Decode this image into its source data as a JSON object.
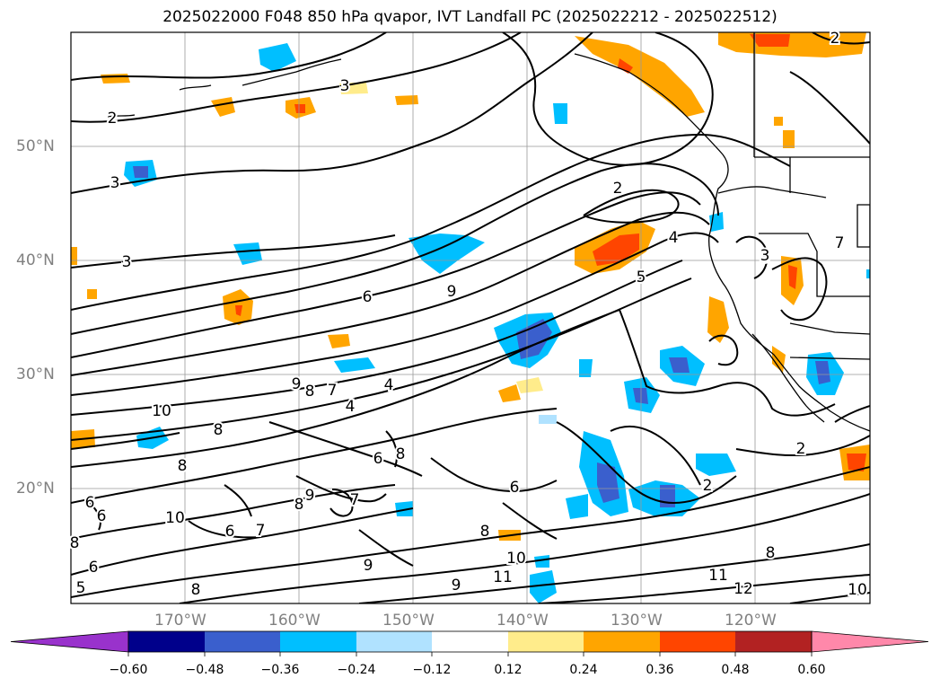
{
  "title": "2025022000 F048 850 hPa qvapor, IVT Landfall PC (2025022212 - 2025022512)",
  "map": {
    "lat_labels": [
      "50°N",
      "40°N",
      "30°N",
      "20°N"
    ],
    "lon_labels": [
      "170°W",
      "160°W",
      "150°W",
      "140°W",
      "130°W",
      "120°W"
    ],
    "colors": {
      "contour": "#000000",
      "grid": "#999999",
      "coast": "#000000"
    },
    "contour_labels": [
      "3",
      "2",
      "3",
      "3",
      "6",
      "9",
      "2",
      "4",
      "5",
      "3",
      "7",
      "9",
      "8",
      "7",
      "4",
      "4",
      "10",
      "8",
      "8",
      "6",
      "8",
      "9",
      "8",
      "6",
      "2",
      "7",
      "6",
      "10",
      "6",
      "7",
      "8",
      "6",
      "8",
      "9",
      "8",
      "10",
      "11",
      "11",
      "12",
      "9",
      "6",
      "5",
      "8",
      "3",
      "2",
      "2",
      "10"
    ]
  },
  "colorbar": {
    "tick_labels": [
      "−0.60",
      "−0.48",
      "−0.36",
      "−0.24",
      "−0.12",
      "0.12",
      "0.24",
      "0.36",
      "0.48",
      "0.60"
    ],
    "colors": [
      "#9932cc",
      "#00008b",
      "#3a5fcd",
      "#00bfff",
      "#b0e2ff",
      "#ffffff",
      "#ffec8b",
      "#ffa500",
      "#ff4500",
      "#b22222",
      "#ff88aa"
    ]
  }
}
